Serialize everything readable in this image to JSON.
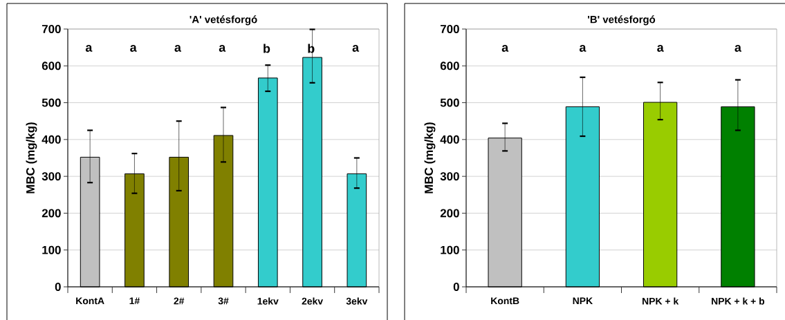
{
  "chart_data": [
    {
      "type": "bar",
      "title": "'A' vetésforgó",
      "ylabel": "MBC (mg/kg)",
      "categories": [
        "KontA",
        "1#",
        "2#",
        "3#",
        "1ekv",
        "2ekv",
        "3ekv"
      ],
      "values": [
        352,
        307,
        352,
        411,
        567,
        623,
        307
      ],
      "colors": [
        "#c0c0c0",
        "#808000",
        "#808000",
        "#808000",
        "#33cccc",
        "#33cccc",
        "#33cccc"
      ],
      "errors": [
        [
          283,
          425
        ],
        [
          254,
          362
        ],
        [
          261,
          450
        ],
        [
          339,
          487
        ],
        [
          531,
          602
        ],
        [
          554,
          699
        ],
        [
          268,
          350
        ]
      ],
      "ylim": [
        0,
        700
      ],
      "yticks": [
        0,
        100,
        200,
        300,
        400,
        500,
        600,
        700
      ],
      "grid": "y",
      "annotations": [
        "a",
        "a",
        "a",
        "a",
        "b",
        "b",
        "a"
      ]
    },
    {
      "type": "bar",
      "title": "'B' vetésforgó",
      "ylabel": "MBC (mg/kg)",
      "categories": [
        "KontB",
        "NPK",
        "NPK + k",
        "NPK + k + b"
      ],
      "values": [
        404,
        489,
        501,
        489
      ],
      "colors": [
        "#c0c0c0",
        "#33cccc",
        "#99cc00",
        "#008000"
      ],
      "errors": [
        [
          369,
          444
        ],
        [
          409,
          569
        ],
        [
          454,
          555
        ],
        [
          425,
          562
        ]
      ],
      "ylim": [
        0,
        700
      ],
      "yticks": [
        0,
        100,
        200,
        300,
        400,
        500,
        600,
        700
      ],
      "grid": "y",
      "annotations": [
        "a",
        "a",
        "a",
        "a"
      ]
    }
  ]
}
